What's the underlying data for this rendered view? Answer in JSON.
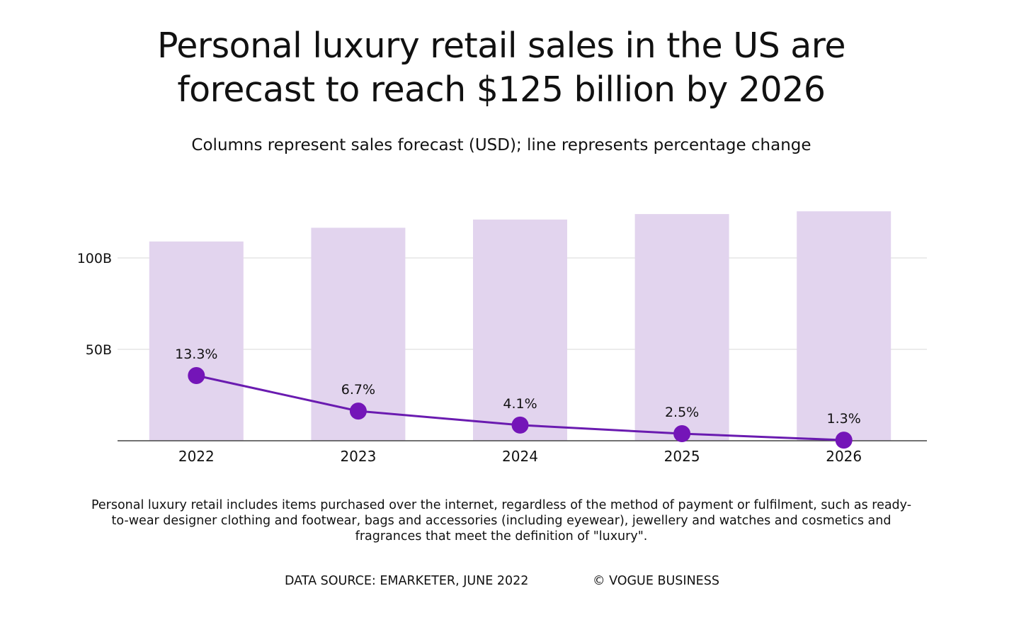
{
  "title_line1": "Personal luxury retail sales in the US are",
  "title_line2": "forecast to reach $125 billion by 2026",
  "subtitle": "Columns represent sales forecast (USD); line represents percentage change",
  "footnote": "Personal luxury retail includes items purchased over the internet, regardless of the method of payment or fulfilment, such as ready-to-wear designer clothing and footwear, bags and accessories (including eyewear), jewellery and watches and cosmetics and fragrances that meet the definition of \"luxury\".",
  "source": "DATA SOURCE: EMARKETER, JUNE 2022",
  "credit": "© VOGUE BUSINESS",
  "colors": {
    "bar": "#e2d4ee",
    "line": "#6a1bb0",
    "marker": "#7415b8",
    "grid": "#e6e6e6",
    "axis": "#444444"
  },
  "chart_data": {
    "type": "bar",
    "categories": [
      "2022",
      "2023",
      "2024",
      "2025",
      "2026"
    ],
    "series": [
      {
        "values_usd_billion": [
          109,
          116.5,
          121,
          124,
          125.5
        ],
        "chart": "bar"
      },
      {
        "values_percent": [
          13.3,
          6.7,
          4.1,
          2.5,
          1.3
        ],
        "labels": [
          "13.3%",
          "6.7%",
          "4.1%",
          "2.5%",
          "1.3%"
        ],
        "chart": "line"
      }
    ],
    "y_ticks": [
      {
        "value": 50,
        "label": "50B"
      },
      {
        "value": 100,
        "label": "100B"
      }
    ],
    "ylim": [
      0,
      130
    ],
    "line_ylim": [
      0,
      34.6
    ],
    "grid": true,
    "legend": "none"
  }
}
